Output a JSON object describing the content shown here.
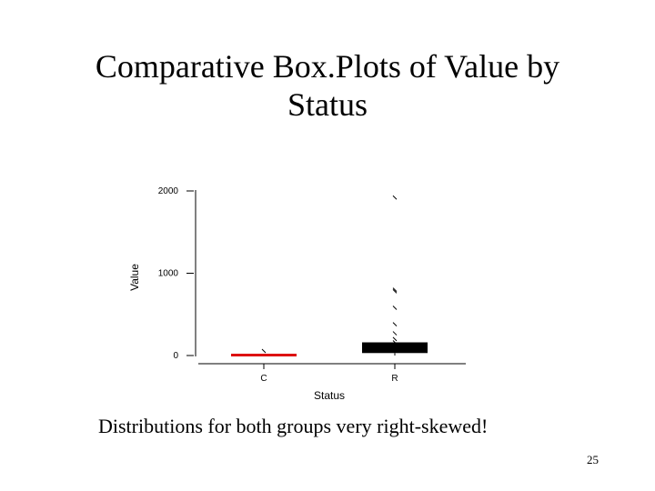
{
  "slide": {
    "title_line1": "Comparative Box.Plots of Value by",
    "title_line2": "Status",
    "caption": "Distributions for both groups very right-skewed!",
    "page_number": "25"
  },
  "colors": {
    "group_C": "#dd1111",
    "group_R": "#000000"
  },
  "chart_data": {
    "type": "box",
    "title": "",
    "xlabel": "Status",
    "ylabel": "Value",
    "ylim": [
      -80,
      2100
    ],
    "yticks": [
      0,
      1000,
      2000
    ],
    "grid": false,
    "categories": [
      "C",
      "R"
    ],
    "boxes": [
      {
        "name": "C",
        "whisker_low": 0,
        "q1": 0,
        "median": 0,
        "q3": 0,
        "whisker_high": 0,
        "outliers": [
          55
        ]
      },
      {
        "name": "R",
        "whisker_low": 0,
        "q1": 30,
        "median": 70,
        "q3": 160,
        "whisker_high": 160,
        "outliers": [
          160,
          200,
          270,
          380,
          580,
          780,
          800,
          1920
        ]
      }
    ]
  }
}
